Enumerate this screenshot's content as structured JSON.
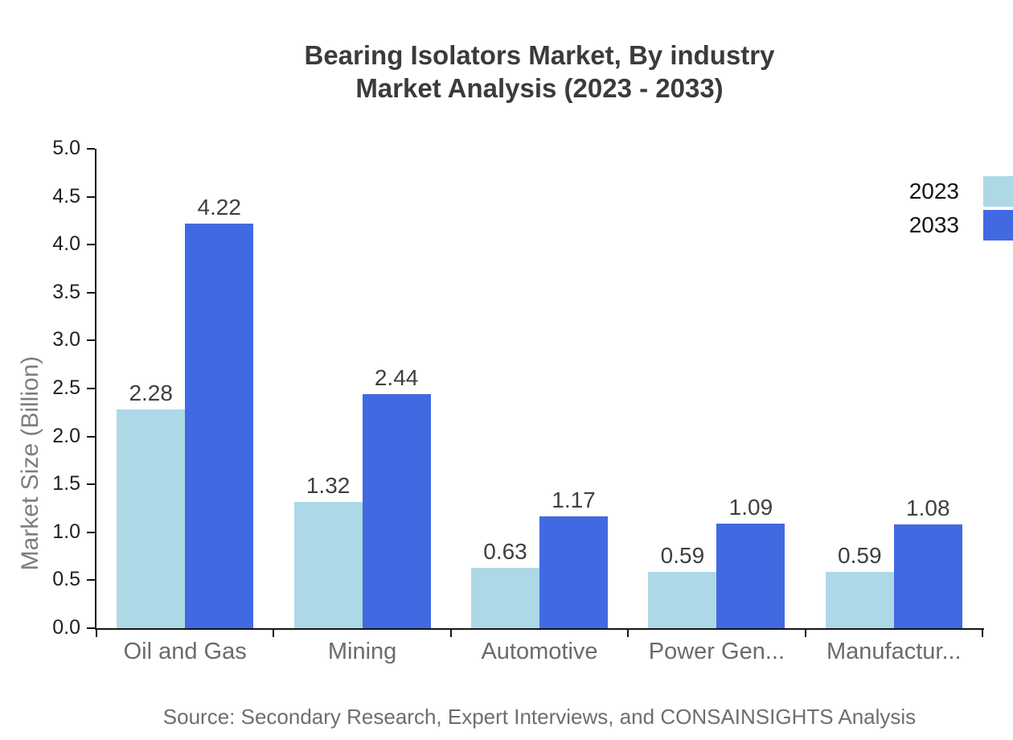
{
  "title": {
    "line1": "Bearing Isolators Market, By industry",
    "line2": "Market Analysis (2023 - 2033)"
  },
  "legend": {
    "items": [
      {
        "label": "2023",
        "color": "#ADD8E6"
      },
      {
        "label": "2033",
        "color": "#4169E1"
      }
    ]
  },
  "y_axis": {
    "title": "Market Size (Billion)",
    "tick_labels": [
      "0.0",
      "0.5",
      "1.0",
      "1.5",
      "2.0",
      "2.5",
      "3.0",
      "3.5",
      "4.0",
      "4.5",
      "5.0"
    ],
    "min": 0,
    "max": 5
  },
  "x_axis": {
    "categories": [
      "Oil and Gas",
      "Mining",
      "Automotive",
      "Power Gen...",
      "Manufactur..."
    ]
  },
  "chart_data": {
    "type": "bar",
    "title": "Bearing Isolators Market, By industry Market Analysis (2023 - 2033)",
    "categories": [
      "Oil and Gas",
      "Mining",
      "Automotive",
      "Power Gen...",
      "Manufactur..."
    ],
    "series": [
      {
        "name": "2023",
        "color": "#ADD8E6",
        "values": [
          2.28,
          1.32,
          0.63,
          0.59,
          0.59
        ]
      },
      {
        "name": "2033",
        "color": "#4169E1",
        "values": [
          4.22,
          2.44,
          1.17,
          1.09,
          1.08
        ]
      }
    ],
    "xlabel": "",
    "ylabel": "Market Size (Billion)",
    "ylim": [
      0,
      5
    ],
    "ytick_step": 0.5,
    "grid": false,
    "legend_position": "top-right",
    "bar_value_labels_shown": true
  },
  "source_note": "Source: Secondary Research, Expert Interviews, and CONSAINSIGHTS Analysis",
  "colors": {
    "series_2023": "#ADD8E6",
    "series_2033": "#4169E1",
    "axis": "#151515",
    "title_text": "#3B3B3B",
    "category_text": "#6B6B6B",
    "value_text": "#3F3F3F",
    "ytick_text": "#1F1F1F",
    "yaxis_title_text": "#7D7D7D",
    "source_text": "#6E6E6E",
    "background": "#FFFFFF"
  }
}
